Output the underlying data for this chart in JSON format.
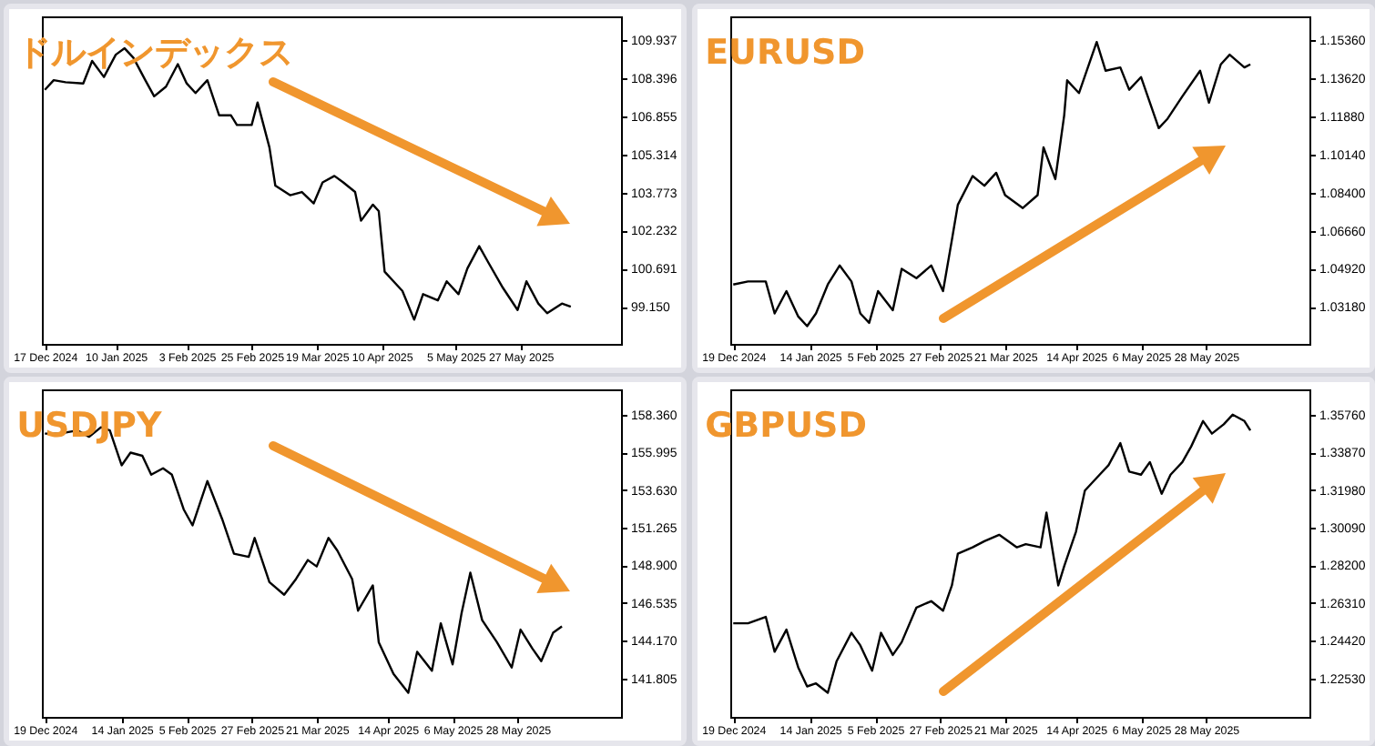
{
  "chart_data": [
    {
      "type": "line",
      "title": "ドルインデックス",
      "x": [
        "2024-12-17",
        "2024-12-20",
        "2024-12-24",
        "2024-12-30",
        "2025-01-02",
        "2025-01-06",
        "2025-01-10",
        "2025-01-13",
        "2025-01-16",
        "2025-01-20",
        "2025-01-23",
        "2025-01-27",
        "2025-01-31",
        "2025-02-03",
        "2025-02-06",
        "2025-02-10",
        "2025-02-14",
        "2025-02-18",
        "2025-02-20",
        "2025-02-25",
        "2025-02-27",
        "2025-03-03",
        "2025-03-05",
        "2025-03-10",
        "2025-03-14",
        "2025-03-18",
        "2025-03-21",
        "2025-03-25",
        "2025-03-28",
        "2025-04-01",
        "2025-04-03",
        "2025-04-07",
        "2025-04-09",
        "2025-04-11",
        "2025-04-15",
        "2025-04-17",
        "2025-04-21",
        "2025-04-24",
        "2025-04-29",
        "2025-05-02",
        "2025-05-06",
        "2025-05-09",
        "2025-05-13",
        "2025-05-16",
        "2025-05-21",
        "2025-05-26",
        "2025-05-29",
        "2025-06-02",
        "2025-06-05",
        "2025-06-10",
        "2025-06-13"
      ],
      "series": [
        {
          "color": "#000000",
          "values": [
            107.92,
            108.31,
            108.23,
            108.18,
            109.09,
            108.44,
            109.34,
            109.6,
            109.21,
            108.31,
            107.66,
            108.05,
            108.96,
            108.18,
            107.79,
            108.31,
            106.89,
            106.89,
            106.5,
            106.5,
            107.41,
            105.6,
            104.05,
            103.66,
            103.79,
            103.33,
            104.18,
            104.44,
            104.18,
            103.79,
            102.63,
            103.28,
            103.02,
            100.57,
            100.05,
            99.79,
            98.63,
            99.66,
            99.41,
            100.18,
            99.66,
            100.7,
            101.6,
            100.96,
            99.92,
            99.02,
            100.18,
            99.28,
            98.89,
            99.28,
            99.15
          ]
        }
      ],
      "xlim": [
        "2024-12-16",
        "2025-06-30"
      ],
      "ylim": [
        97.65,
        110.89
      ],
      "xticks": [
        {
          "value": "2024-12-17",
          "label": "17 Dec 2024"
        },
        {
          "value": "2025-01-10",
          "label": "10 Jan 2025"
        },
        {
          "value": "2025-02-03",
          "label": "3 Feb 2025"
        },
        {
          "value": "2025-02-25",
          "label": "25 Feb 2025"
        },
        {
          "value": "2025-03-19",
          "label": "19 Mar 2025"
        },
        {
          "value": "2025-04-10",
          "label": "10 Apr 2025"
        },
        {
          "value": "2025-05-05",
          "label": "5 May 2025"
        },
        {
          "value": "2025-05-27",
          "label": "27 May 2025"
        }
      ],
      "yticks": [
        {
          "value": 99.15,
          "label": "99.150"
        },
        {
          "value": 100.691,
          "label": "100.691"
        },
        {
          "value": 102.232,
          "label": "102.232"
        },
        {
          "value": 103.773,
          "label": "103.773"
        },
        {
          "value": 105.314,
          "label": "105.314"
        },
        {
          "value": 106.855,
          "label": "106.855"
        },
        {
          "value": 108.396,
          "label": "108.396"
        },
        {
          "value": 109.937,
          "label": "109.937"
        }
      ]
    },
    {
      "type": "line",
      "title": "EURUSD",
      "x": [
        "2024-12-19",
        "2024-12-24",
        "2024-12-30",
        "2025-01-02",
        "2025-01-06",
        "2025-01-10",
        "2025-01-13",
        "2025-01-16",
        "2025-01-20",
        "2025-01-24",
        "2025-01-28",
        "2025-01-31",
        "2025-02-03",
        "2025-02-06",
        "2025-02-11",
        "2025-02-14",
        "2025-02-19",
        "2025-02-24",
        "2025-02-28",
        "2025-03-03",
        "2025-03-05",
        "2025-03-10",
        "2025-03-14",
        "2025-03-18",
        "2025-03-21",
        "2025-03-27",
        "2025-04-01",
        "2025-04-03",
        "2025-04-07",
        "2025-04-10",
        "2025-04-11",
        "2025-04-15",
        "2025-04-21",
        "2025-04-24",
        "2025-04-29",
        "2025-05-02",
        "2025-05-06",
        "2025-05-12",
        "2025-05-15",
        "2025-05-20",
        "2025-05-26",
        "2025-05-29",
        "2025-06-02",
        "2025-06-05",
        "2025-06-10",
        "2025-06-12"
      ],
      "series": [
        {
          "color": "#000000",
          "values": [
            1.042,
            1.0434,
            1.0434,
            1.0288,
            1.039,
            1.0274,
            1.023,
            1.0288,
            1.042,
            1.0507,
            1.0434,
            1.0288,
            1.0245,
            1.039,
            1.0303,
            1.0492,
            1.0449,
            1.0507,
            1.039,
            1.0624,
            1.0784,
            1.0915,
            1.0871,
            1.093,
            1.0828,
            1.0769,
            1.0828,
            1.1046,
            1.0901,
            1.1192,
            1.1352,
            1.1294,
            1.1527,
            1.1396,
            1.1411,
            1.1309,
            1.1367,
            1.1134,
            1.1177,
            1.1279,
            1.1396,
            1.125,
            1.1425,
            1.1469,
            1.1411,
            1.1425
          ]
        }
      ],
      "xlim": [
        "2024-12-18",
        "2025-07-02"
      ],
      "ylim": [
        1.0149,
        1.1644
      ],
      "xticks": [
        {
          "value": "2024-12-19",
          "label": "19 Dec 2024"
        },
        {
          "value": "2025-01-14",
          "label": "14 Jan 2025"
        },
        {
          "value": "2025-02-05",
          "label": "5 Feb 2025"
        },
        {
          "value": "2025-02-27",
          "label": "27 Feb 2025"
        },
        {
          "value": "2025-03-21",
          "label": "21 Mar 2025"
        },
        {
          "value": "2025-04-14",
          "label": "14 Apr 2025"
        },
        {
          "value": "2025-05-06",
          "label": "6 May 2025"
        },
        {
          "value": "2025-05-28",
          "label": "28 May 2025"
        }
      ],
      "yticks": [
        {
          "value": 1.0318,
          "label": "1.03180"
        },
        {
          "value": 1.0492,
          "label": "1.04920"
        },
        {
          "value": 1.0666,
          "label": "1.06660"
        },
        {
          "value": 1.084,
          "label": "1.08400"
        },
        {
          "value": 1.1014,
          "label": "1.10140"
        },
        {
          "value": 1.1188,
          "label": "1.11880"
        },
        {
          "value": 1.1362,
          "label": "1.13620"
        },
        {
          "value": 1.1536,
          "label": "1.15360"
        }
      ]
    },
    {
      "type": "line",
      "title": "USDJPY",
      "x": [
        "2024-12-19",
        "2024-12-24",
        "2024-12-30",
        "2025-01-03",
        "2025-01-07",
        "2025-01-10",
        "2025-01-14",
        "2025-01-17",
        "2025-01-21",
        "2025-01-24",
        "2025-01-28",
        "2025-01-31",
        "2025-02-04",
        "2025-02-07",
        "2025-02-12",
        "2025-02-17",
        "2025-02-21",
        "2025-02-26",
        "2025-02-28",
        "2025-03-05",
        "2025-03-10",
        "2025-03-14",
        "2025-03-18",
        "2025-03-21",
        "2025-03-25",
        "2025-03-28",
        "2025-04-02",
        "2025-04-04",
        "2025-04-09",
        "2025-04-11",
        "2025-04-16",
        "2025-04-21",
        "2025-04-24",
        "2025-04-29",
        "2025-05-02",
        "2025-05-06",
        "2025-05-09",
        "2025-05-12",
        "2025-05-16",
        "2025-05-21",
        "2025-05-26",
        "2025-05-29",
        "2025-06-02",
        "2025-06-05",
        "2025-06-09",
        "2025-06-12"
      ],
      "series": [
        {
          "color": "#000000",
          "values": [
            157.17,
            157.17,
            157.37,
            156.97,
            157.57,
            157.37,
            155.18,
            155.98,
            155.78,
            154.59,
            154.99,
            154.59,
            152.41,
            151.41,
            154.19,
            151.81,
            149.63,
            149.43,
            150.62,
            147.84,
            147.05,
            148.04,
            149.23,
            148.83,
            150.62,
            149.82,
            148.04,
            146.05,
            147.64,
            144.07,
            142.08,
            140.89,
            143.47,
            142.28,
            145.26,
            142.68,
            145.86,
            148.44,
            145.46,
            144.07,
            142.48,
            144.86,
            143.67,
            142.88,
            144.66,
            145.06
          ]
        }
      ],
      "xlim": [
        "2024-12-18",
        "2025-07-02"
      ],
      "ylim": [
        139.38,
        159.95
      ],
      "xticks": [
        {
          "value": "2024-12-19",
          "label": "19 Dec 2024"
        },
        {
          "value": "2025-01-14",
          "label": "14 Jan 2025"
        },
        {
          "value": "2025-02-05",
          "label": "5 Feb 2025"
        },
        {
          "value": "2025-02-27",
          "label": "27 Feb 2025"
        },
        {
          "value": "2025-03-21",
          "label": "21 Mar 2025"
        },
        {
          "value": "2025-04-14",
          "label": "14 Apr 2025"
        },
        {
          "value": "2025-05-06",
          "label": "6 May 2025"
        },
        {
          "value": "2025-05-28",
          "label": "28 May 2025"
        }
      ],
      "yticks": [
        {
          "value": 141.805,
          "label": "141.805"
        },
        {
          "value": 144.17,
          "label": "144.170"
        },
        {
          "value": 146.535,
          "label": "146.535"
        },
        {
          "value": 148.9,
          "label": "148.900"
        },
        {
          "value": 151.265,
          "label": "151.265"
        },
        {
          "value": 153.63,
          "label": "153.630"
        },
        {
          "value": 155.995,
          "label": "155.995"
        },
        {
          "value": 158.36,
          "label": "158.360"
        }
      ]
    },
    {
      "type": "line",
      "title": "GBPUSD",
      "x": [
        "2024-12-19",
        "2024-12-24",
        "2024-12-30",
        "2025-01-02",
        "2025-01-06",
        "2025-01-10",
        "2025-01-13",
        "2025-01-16",
        "2025-01-20",
        "2025-01-23",
        "2025-01-28",
        "2025-01-31",
        "2025-02-04",
        "2025-02-07",
        "2025-02-11",
        "2025-02-14",
        "2025-02-19",
        "2025-02-24",
        "2025-02-28",
        "2025-03-03",
        "2025-03-05",
        "2025-03-10",
        "2025-03-14",
        "2025-03-19",
        "2025-03-25",
        "2025-03-28",
        "2025-04-02",
        "2025-04-04",
        "2025-04-08",
        "2025-04-10",
        "2025-04-14",
        "2025-04-17",
        "2025-04-22",
        "2025-04-25",
        "2025-04-29",
        "2025-05-02",
        "2025-05-06",
        "2025-05-09",
        "2025-05-13",
        "2025-05-16",
        "2025-05-20",
        "2025-05-23",
        "2025-05-27",
        "2025-05-30",
        "2025-06-03",
        "2025-06-06",
        "2025-06-10",
        "2025-06-12"
      ],
      "series": [
        {
          "color": "#000000",
          "values": [
            1.2529,
            1.2529,
            1.2561,
            1.2386,
            1.2497,
            1.2307,
            1.2212,
            1.2227,
            1.218,
            1.2339,
            1.2481,
            1.2418,
            1.2291,
            1.2481,
            1.237,
            1.2434,
            1.2608,
            1.264,
            1.2592,
            1.2719,
            1.2878,
            1.291,
            1.2941,
            1.2973,
            1.291,
            1.2926,
            1.291,
            1.3084,
            1.2719,
            1.2815,
            1.2989,
            1.3195,
            1.3275,
            1.3322,
            1.3433,
            1.329,
            1.3275,
            1.3338,
            1.3179,
            1.3275,
            1.3338,
            1.3417,
            1.3544,
            1.3481,
            1.3528,
            1.3576,
            1.3544,
            1.3497
          ]
        }
      ],
      "xlim": [
        "2024-12-18",
        "2025-07-02"
      ],
      "ylim": [
        1.2059,
        1.3703
      ],
      "xticks": [
        {
          "value": "2024-12-19",
          "label": "19 Dec 2024"
        },
        {
          "value": "2025-01-14",
          "label": "14 Jan 2025"
        },
        {
          "value": "2025-02-05",
          "label": "5 Feb 2025"
        },
        {
          "value": "2025-02-27",
          "label": "27 Feb 2025"
        },
        {
          "value": "2025-03-21",
          "label": "21 Mar 2025"
        },
        {
          "value": "2025-04-14",
          "label": "14 Apr 2025"
        },
        {
          "value": "2025-05-06",
          "label": "6 May 2025"
        },
        {
          "value": "2025-05-28",
          "label": "28 May 2025"
        }
      ],
      "yticks": [
        {
          "value": 1.2253,
          "label": "1.22530"
        },
        {
          "value": 1.2442,
          "label": "1.24420"
        },
        {
          "value": 1.2631,
          "label": "1.26310"
        },
        {
          "value": 1.282,
          "label": "1.28200"
        },
        {
          "value": 1.3009,
          "label": "1.30090"
        },
        {
          "value": 1.3198,
          "label": "1.31980"
        },
        {
          "value": 1.3387,
          "label": "1.33870"
        },
        {
          "value": 1.3576,
          "label": "1.35760"
        }
      ]
    }
  ]
}
